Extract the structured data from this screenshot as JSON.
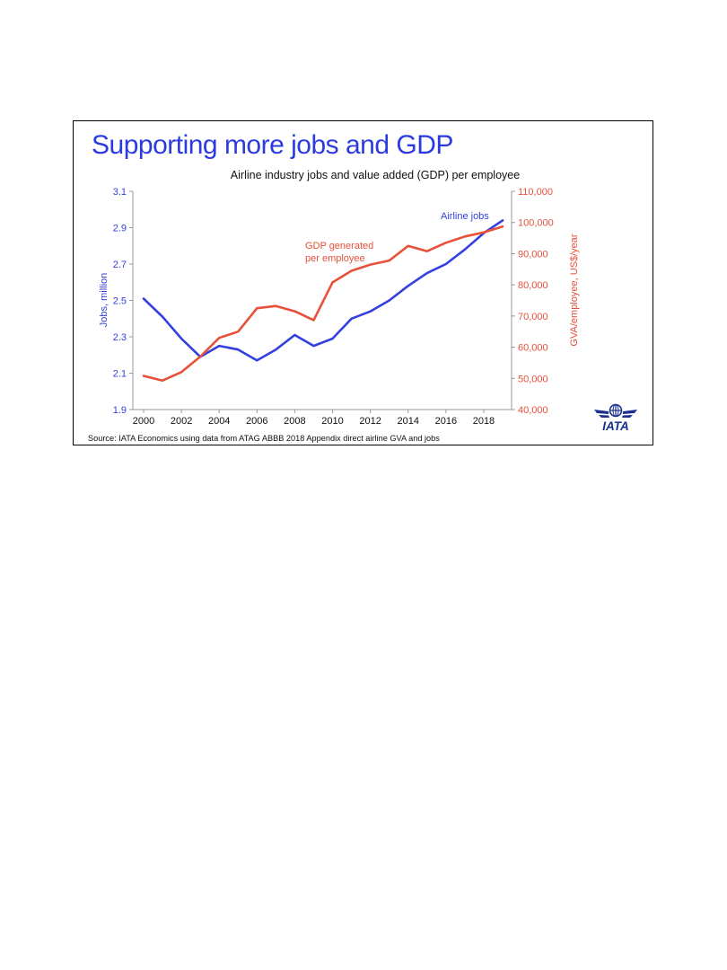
{
  "slide": {
    "title": "Supporting more jobs and GDP",
    "title_color": "#2B3BE0",
    "logo_text": "IATA",
    "logo_color": "#1B2F8F"
  },
  "chart_data": {
    "type": "line",
    "title": "Airline industry jobs and value added (GDP) per employee",
    "source": "Source: IATA Economics using data from ATAG ABBB 2018 Appendix direct airline GVA and jobs",
    "x": [
      2000,
      2001,
      2002,
      2003,
      2004,
      2005,
      2006,
      2007,
      2008,
      2009,
      2010,
      2011,
      2012,
      2013,
      2014,
      2015,
      2016,
      2017,
      2018,
      2019
    ],
    "x_ticks": [
      "2000",
      "2002",
      "2004",
      "2006",
      "2008",
      "2010",
      "2012",
      "2014",
      "2016",
      "2018"
    ],
    "xlim": [
      2000,
      2019
    ],
    "y_left": {
      "label": "Jobs, million",
      "lim": [
        1.9,
        3.1
      ],
      "ticks": [
        "1.9",
        "2.1",
        "2.3",
        "2.5",
        "2.7",
        "2.9",
        "3.1"
      ],
      "color": "#3340E0"
    },
    "y_right": {
      "label": "GVA/employee, US$/year",
      "lim": [
        40000,
        110000
      ],
      "ticks": [
        "40,000",
        "50,000",
        "60,000",
        "70,000",
        "80,000",
        "90,000",
        "100,000",
        "110,000"
      ],
      "color": "#E8503A"
    },
    "series": [
      {
        "name": "Airline jobs",
        "axis": "left",
        "color": "#3340E0",
        "values": [
          2.51,
          2.41,
          2.29,
          2.19,
          2.25,
          2.23,
          2.17,
          2.23,
          2.31,
          2.25,
          2.29,
          2.4,
          2.44,
          2.5,
          2.58,
          2.65,
          2.7,
          2.78,
          2.87,
          2.94
        ]
      },
      {
        "name": "GDP generated per employee",
        "axis": "right",
        "color": "#E8503A",
        "values": [
          50800,
          49300,
          52000,
          57000,
          63000,
          65000,
          72500,
          73200,
          71500,
          68700,
          80800,
          84500,
          86500,
          87800,
          92500,
          90800,
          93500,
          95500,
          96800,
          98700
        ]
      }
    ],
    "annotations": [
      {
        "text": "Airline jobs",
        "series": 0
      },
      {
        "text": "GDP generated",
        "series": 1
      },
      {
        "text": "per employee",
        "series": 1
      }
    ],
    "grid": false,
    "legend": "none"
  }
}
